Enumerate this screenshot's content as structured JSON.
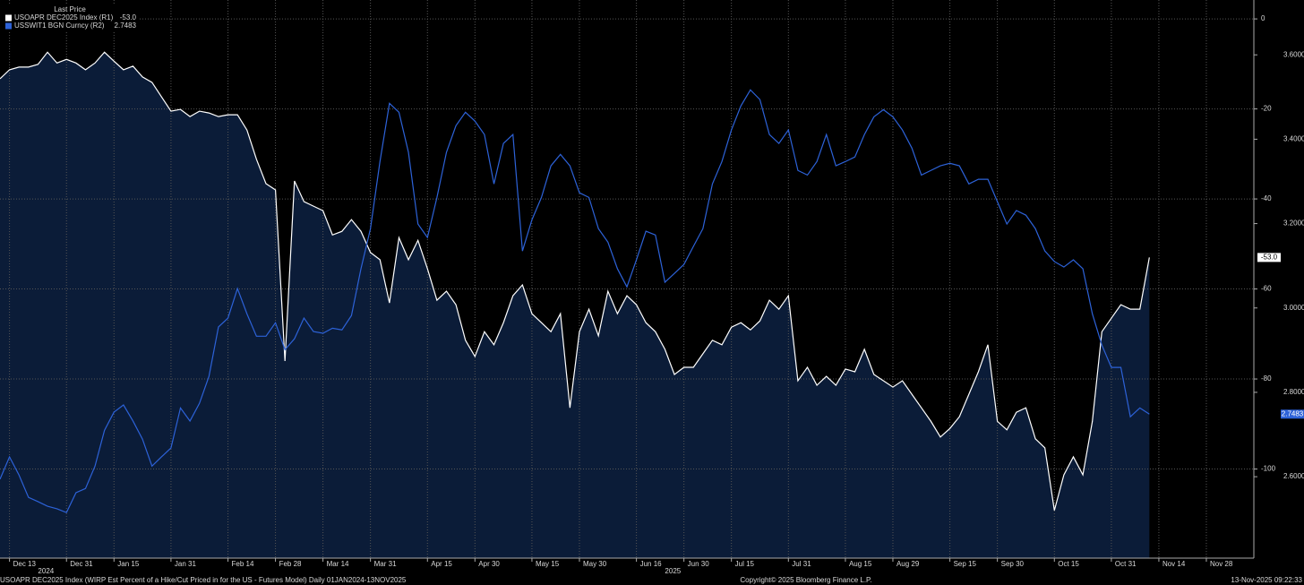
{
  "chart_data": {
    "type": "line",
    "legend_title": "Last Price",
    "categories": [
      null,
      "Dec 13",
      null,
      null,
      null,
      null,
      null,
      "Dec 31",
      null,
      null,
      null,
      null,
      "Jan 15",
      null,
      null,
      null,
      null,
      null,
      "Jan 31",
      null,
      null,
      null,
      null,
      null,
      "Feb 14",
      null,
      null,
      null,
      null,
      "Feb 28",
      null,
      null,
      null,
      null,
      "Mar 14",
      null,
      null,
      null,
      null,
      "Mar 31",
      null,
      null,
      null,
      null,
      null,
      "Apr 15",
      null,
      null,
      null,
      null,
      "Apr 30",
      null,
      null,
      null,
      null,
      null,
      "May 15",
      null,
      null,
      null,
      null,
      "May 30",
      null,
      null,
      null,
      null,
      null,
      "Jun 16",
      null,
      null,
      null,
      null,
      "Jun 30",
      null,
      null,
      null,
      null,
      "Jul 15",
      null,
      null,
      null,
      null,
      null,
      "Jul 31",
      null,
      null,
      null,
      null,
      null,
      "Aug 15",
      null,
      null,
      null,
      null,
      "Aug 29",
      null,
      null,
      null,
      null,
      null,
      "Sep 15",
      null,
      null,
      null,
      null,
      "Sep 30",
      null,
      null,
      null,
      null,
      null,
      "Oct 15",
      null,
      null,
      null,
      null,
      null,
      "Oct 31",
      null,
      null,
      null,
      null,
      "Nov 14",
      null,
      null,
      null,
      null,
      "Nov 28",
      null,
      null,
      null,
      null
    ],
    "category_groups": [
      null,
      null,
      null,
      null,
      "2024",
      null,
      null,
      null,
      null,
      null,
      null,
      null,
      null,
      null,
      null,
      null,
      null,
      null,
      null,
      null,
      null,
      null,
      null,
      null,
      null,
      null,
      null,
      null,
      null,
      null,
      null,
      null,
      null,
      null,
      null,
      null,
      null,
      null,
      null,
      null,
      null,
      null,
      null,
      null,
      null,
      null,
      null,
      null,
      null,
      null,
      null,
      null,
      null,
      null,
      null,
      null,
      null,
      null,
      null,
      null,
      null,
      null,
      null,
      null,
      null,
      null,
      null,
      null,
      null,
      null,
      "2025",
      null,
      null,
      null,
      null,
      null,
      null,
      null,
      null,
      null,
      null,
      null,
      null,
      null,
      null,
      null,
      null,
      null,
      null,
      null,
      null,
      null,
      null,
      null,
      null,
      null,
      null,
      null,
      null,
      null,
      null,
      null,
      null,
      null,
      null,
      null,
      null,
      null,
      null,
      null,
      null,
      null,
      null,
      null,
      null,
      null,
      null,
      null,
      null,
      null,
      null,
      null,
      null,
      null,
      null,
      null,
      null,
      null,
      null,
      null,
      null,
      null
    ],
    "series": [
      {
        "name": "USOAPR DEC2025 Index (R1)",
        "last_price_label": "-53.0",
        "color": "#ffffff",
        "area_color": "#0b1c38",
        "axis": "y",
        "values": [
          -13.3,
          -11.3,
          -10.7,
          -10.7,
          -10.1,
          -7.4,
          -9.8,
          -9.0,
          -9.8,
          -11.3,
          -9.8,
          -7.4,
          -9.4,
          -11.3,
          -10.5,
          -12.9,
          -14.1,
          -17.3,
          -20.5,
          -20.1,
          -21.7,
          -20.5,
          -20.9,
          -21.7,
          -21.3,
          -21.3,
          -24.7,
          -31.2,
          -36.6,
          -38.0,
          -76.0,
          -36.0,
          -40.6,
          -41.6,
          -42.6,
          -48.0,
          -47.2,
          -44.6,
          -47.2,
          -51.9,
          -53.5,
          -63.1,
          -48.6,
          -53.5,
          -49.2,
          -55.5,
          -62.5,
          -60.5,
          -63.5,
          -71.4,
          -75.0,
          -69.5,
          -72.4,
          -67.5,
          -61.5,
          -59.1,
          -65.5,
          -67.5,
          -69.5,
          -65.5,
          -86.4,
          -69.5,
          -64.5,
          -70.4,
          -60.5,
          -65.5,
          -61.5,
          -63.5,
          -67.5,
          -69.5,
          -73.4,
          -79.0,
          -77.4,
          -77.4,
          -74.4,
          -71.4,
          -72.4,
          -68.5,
          -67.5,
          -69.1,
          -67.1,
          -62.5,
          -64.5,
          -61.5,
          -80.4,
          -77.4,
          -81.4,
          -79.4,
          -81.4,
          -77.8,
          -78.4,
          -73.4,
          -79.0,
          -80.4,
          -81.8,
          -80.4,
          -83.4,
          -86.4,
          -89.4,
          -92.9,
          -91.0,
          -88.4,
          -83.4,
          -78.4,
          -72.4,
          -89.4,
          -91.3,
          -87.4,
          -86.4,
          -93.3,
          -95.3,
          -109.2,
          -101.3,
          -97.3,
          -101.3,
          -89.4,
          -69.5,
          -66.5,
          -63.5,
          -64.5,
          -64.5,
          -53.0,
          null,
          null,
          null,
          null,
          null,
          null,
          null,
          null,
          null,
          null
        ]
      },
      {
        "name": "USSWIT1 BGN Curncy (R2)",
        "last_price_label": "2.7483",
        "color": "#2d62d8",
        "axis": "y2",
        "values": [
          2.594,
          2.647,
          2.604,
          2.551,
          2.541,
          2.53,
          2.524,
          2.515,
          2.562,
          2.572,
          2.625,
          2.71,
          2.753,
          2.77,
          2.732,
          2.689,
          2.625,
          2.647,
          2.668,
          2.763,
          2.732,
          2.774,
          2.838,
          2.955,
          2.976,
          3.046,
          2.986,
          2.933,
          2.933,
          2.965,
          2.901,
          2.927,
          2.976,
          2.944,
          2.94,
          2.952,
          2.948,
          2.982,
          3.093,
          3.188,
          3.347,
          3.485,
          3.464,
          3.369,
          3.199,
          3.167,
          3.262,
          3.369,
          3.432,
          3.464,
          3.443,
          3.411,
          3.294,
          3.39,
          3.411,
          3.135,
          3.209,
          3.262,
          3.337,
          3.364,
          3.337,
          3.273,
          3.262,
          3.188,
          3.156,
          3.093,
          3.05,
          3.114,
          3.182,
          3.173,
          3.061,
          3.082,
          3.103,
          3.146,
          3.188,
          3.294,
          3.347,
          3.422,
          3.479,
          3.517,
          3.494,
          3.411,
          3.39,
          3.422,
          3.326,
          3.315,
          3.347,
          3.411,
          3.337,
          3.347,
          3.358,
          3.411,
          3.453,
          3.47,
          3.453,
          3.422,
          3.379,
          3.315,
          3.326,
          3.337,
          3.343,
          3.337,
          3.294,
          3.305,
          3.305,
          3.252,
          3.199,
          3.231,
          3.22,
          3.188,
          3.135,
          3.11,
          3.097,
          3.114,
          3.093,
          2.986,
          2.912,
          2.859,
          2.859,
          2.742,
          2.763,
          2.7483,
          null,
          null,
          null,
          null,
          null,
          null,
          null,
          null,
          null,
          null
        ]
      }
    ],
    "ylim": [
      -119.8,
      4.2
    ],
    "yticks": [
      0,
      -20,
      -40,
      -60,
      -80,
      -100
    ],
    "y2lim": [
      2.407,
      3.73
    ],
    "y2ticks": [
      {
        "value": 3.6,
        "label": "3.6000"
      },
      {
        "value": 3.4,
        "label": "3.4000"
      },
      {
        "value": 3.2,
        "label": "3.2000"
      },
      {
        "value": 3.0,
        "label": "3.0000"
      },
      {
        "value": 2.8,
        "label": "2.8000"
      },
      {
        "value": 2.6,
        "label": "2.6000"
      }
    ],
    "grid": true,
    "legend_position": "top-left",
    "footer_left": "USOAPR DEC2025 Index (WIRP Est Percent of a Hike/Cut Priced in for the US - Futures Model) Daily 01JAN2024-13NOV2025",
    "footer_center": "Copyright© 2025 Bloomberg Finance L.P.",
    "footer_right": "13-Nov-2025 09:22:33"
  }
}
